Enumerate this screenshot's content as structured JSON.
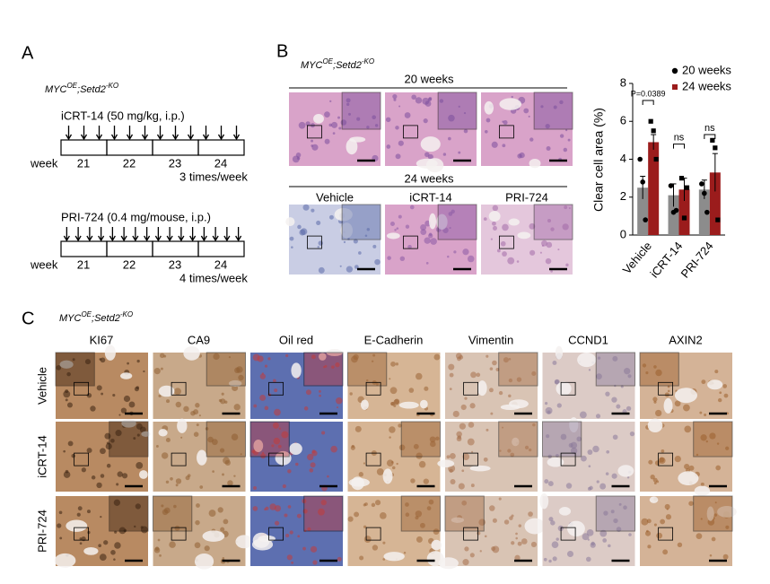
{
  "panel_a": {
    "label": "A",
    "genotype": {
      "gene1": "MYC",
      "sup1": "OE",
      "gene2": ";Setd2",
      "sup2": "-KO"
    },
    "schedules": [
      {
        "drug": "iCRT-14 (50 mg/kg, i.p.)",
        "week_label": "week",
        "weeks": [
          "21",
          "22",
          "23",
          "24"
        ],
        "frequency": "3 times/week"
      },
      {
        "drug": "PRI-724 (0.4 mg/mouse, i.p.)",
        "week_label": "week",
        "weeks": [
          "21",
          "22",
          "23",
          "24"
        ],
        "frequency": "4 times/week"
      }
    ]
  },
  "panel_b": {
    "label": "B",
    "genotype": {
      "gene1": "MYC",
      "sup1": "OE",
      "gene2": ";Setd2",
      "sup2": "-KO"
    },
    "row1_title": "20 weeks",
    "row2_title": "24 weeks",
    "row2_columns": [
      "Vehicle",
      "iCRT-14",
      "PRI-724"
    ]
  },
  "chart_data": {
    "type": "bar",
    "y_label": "Clear cell area  (%)",
    "categories": [
      "Vehicle",
      "iCRT-14",
      "PRI-724"
    ],
    "series": [
      {
        "name": "20 weeks",
        "color": "#8c8c8c",
        "values": [
          2.5,
          2.1,
          2.4
        ],
        "errors": [
          0.6,
          0.6,
          0.5
        ],
        "points": [
          [
            4.0,
            2.8,
            0.8
          ],
          [
            2.6,
            1.2,
            1.3
          ],
          [
            2.7,
            2.2,
            1.2
          ]
        ]
      },
      {
        "name": "24 weeks",
        "color": "#9b1c1c",
        "values": [
          4.9,
          2.4,
          3.3
        ],
        "errors": [
          0.4,
          0.6,
          1.0
        ],
        "points": [
          [
            6.0,
            5.5,
            4.0
          ],
          [
            3.0,
            0.9,
            2.5
          ],
          [
            5.0,
            4.6,
            0.8
          ]
        ]
      }
    ],
    "ylim": [
      0,
      8
    ],
    "yticks": [
      0,
      2,
      4,
      6,
      8
    ],
    "annotations": [
      "P=0.0389",
      "ns",
      "ns"
    ]
  },
  "panel_c": {
    "label": "C",
    "genotype": {
      "gene1": "MYC",
      "sup1": "OE",
      "gene2": ";Setd2",
      "sup2": "-KO"
    },
    "stains": [
      "KI67",
      "CA9",
      "Oil red",
      "E-Cadherin",
      "Vimentin",
      "CCND1",
      "AXIN2"
    ],
    "rows": [
      "Vehicle",
      "iCRT-14",
      "PRI-724"
    ]
  }
}
